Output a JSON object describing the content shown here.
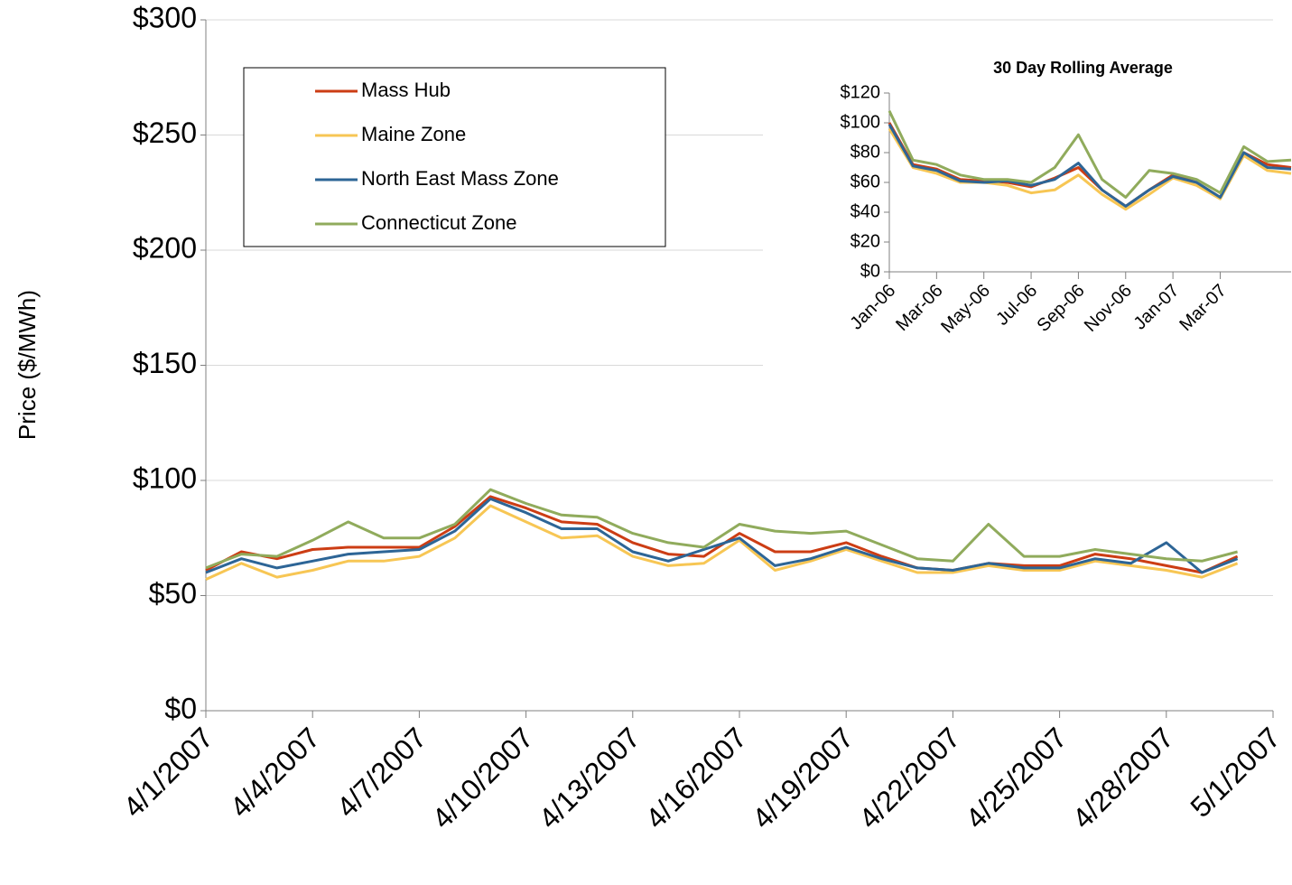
{
  "chart_data": [
    {
      "type": "line",
      "y_label": "Price ($/MWh)",
      "x": [
        "4/1/2007",
        "4/2/2007",
        "4/3/2007",
        "4/4/2007",
        "4/5/2007",
        "4/6/2007",
        "4/7/2007",
        "4/8/2007",
        "4/9/2007",
        "4/10/2007",
        "4/11/2007",
        "4/12/2007",
        "4/13/2007",
        "4/14/2007",
        "4/15/2007",
        "4/16/2007",
        "4/17/2007",
        "4/18/2007",
        "4/19/2007",
        "4/20/2007",
        "4/21/2007",
        "4/22/2007",
        "4/23/2007",
        "4/24/2007",
        "4/25/2007",
        "4/26/2007",
        "4/27/2007",
        "4/28/2007",
        "4/29/2007",
        "4/30/2007"
      ],
      "series": [
        {
          "name": "Mass Hub",
          "color": "#cc3d14",
          "values": [
            61,
            69,
            66,
            70,
            71,
            71,
            71,
            80,
            93,
            88,
            82,
            81,
            73,
            68,
            67,
            77,
            69,
            69,
            73,
            67,
            62,
            61,
            64,
            63,
            63,
            68,
            66,
            63,
            60,
            67
          ]
        },
        {
          "name": "Maine Zone",
          "color": "#f7c654",
          "values": [
            57,
            64,
            58,
            61,
            65,
            65,
            67,
            75,
            89,
            82,
            75,
            76,
            67,
            63,
            64,
            74,
            61,
            65,
            70,
            65,
            60,
            60,
            63,
            61,
            61,
            65,
            63,
            61,
            58,
            64
          ]
        },
        {
          "name": "North East Mass Zone",
          "color": "#2d6596",
          "values": [
            60,
            66,
            62,
            65,
            68,
            69,
            70,
            78,
            92,
            86,
            79,
            79,
            69,
            65,
            70,
            75,
            63,
            66,
            71,
            66,
            62,
            61,
            64,
            62,
            62,
            66,
            64,
            73,
            60,
            66
          ]
        },
        {
          "name": "Connecticut Zone",
          "color": "#90ab5c",
          "values": [
            62,
            68,
            67,
            74,
            82,
            75,
            75,
            81,
            96,
            90,
            85,
            84,
            77,
            73,
            71,
            81,
            78,
            77,
            78,
            72,
            66,
            65,
            81,
            67,
            67,
            70,
            68,
            66,
            65,
            69
          ]
        }
      ],
      "xlim": [
        "4/1/2007",
        "5/1/2007"
      ],
      "xticks": [
        "4/1/2007",
        "4/4/2007",
        "4/7/2007",
        "4/10/2007",
        "4/13/2007",
        "4/16/2007",
        "4/19/2007",
        "4/22/2007",
        "4/25/2007",
        "4/28/2007",
        "5/1/2007"
      ],
      "ylim": [
        0,
        300
      ],
      "yticks": [
        {
          "value": 0,
          "label": "$0"
        },
        {
          "value": 50,
          "label": "$50"
        },
        {
          "value": 100,
          "label": "$100"
        },
        {
          "value": 150,
          "label": "$150"
        },
        {
          "value": 200,
          "label": "$200"
        },
        {
          "value": 250,
          "label": "$250"
        },
        {
          "value": 300,
          "label": "$300"
        }
      ],
      "grid": true,
      "legend": "top-left"
    },
    {
      "type": "line",
      "title": "30 Day Rolling Average",
      "x": [
        "Jan-06",
        "Feb-06",
        "Mar-06",
        "Apr-06",
        "May-06",
        "Jun-06",
        "Jul-06",
        "Aug-06",
        "Sep-06",
        "Oct-06",
        "Nov-06",
        "Dec-06",
        "Jan-07",
        "Feb-07",
        "Mar-07",
        "Apr-07",
        "May-07",
        "Jun-07"
      ],
      "series": [
        {
          "name": "Mass Hub",
          "color": "#cc3d14",
          "values": [
            100,
            72,
            69,
            62,
            61,
            60,
            57,
            63,
            70,
            55,
            44,
            55,
            65,
            60,
            50,
            80,
            72,
            70
          ]
        },
        {
          "name": "Maine Zone",
          "color": "#f7c654",
          "values": [
            96,
            70,
            66,
            60,
            60,
            58,
            53,
            55,
            65,
            52,
            42,
            52,
            63,
            58,
            49,
            78,
            68,
            66
          ]
        },
        {
          "name": "North East Mass Zone",
          "color": "#2d6596",
          "values": [
            99,
            71,
            68,
            61,
            60,
            61,
            58,
            62,
            73,
            55,
            44,
            55,
            64,
            60,
            50,
            80,
            70,
            69
          ]
        },
        {
          "name": "Connecticut Zone",
          "color": "#90ab5c",
          "values": [
            108,
            75,
            72,
            65,
            62,
            62,
            60,
            70,
            92,
            62,
            50,
            68,
            66,
            62,
            53,
            84,
            74,
            75
          ]
        }
      ],
      "xticks": [
        "Jan-06",
        "Mar-06",
        "May-06",
        "Jul-06",
        "Sep-06",
        "Nov-06",
        "Jan-07",
        "Mar-07"
      ],
      "ylim": [
        0,
        120
      ],
      "yticks": [
        {
          "value": 0,
          "label": "$0"
        },
        {
          "value": 20,
          "label": "$20"
        },
        {
          "value": 40,
          "label": "$40"
        },
        {
          "value": 60,
          "label": "$60"
        },
        {
          "value": 80,
          "label": "$80"
        },
        {
          "value": 100,
          "label": "$100"
        },
        {
          "value": 120,
          "label": "$120"
        }
      ],
      "grid": false
    }
  ]
}
